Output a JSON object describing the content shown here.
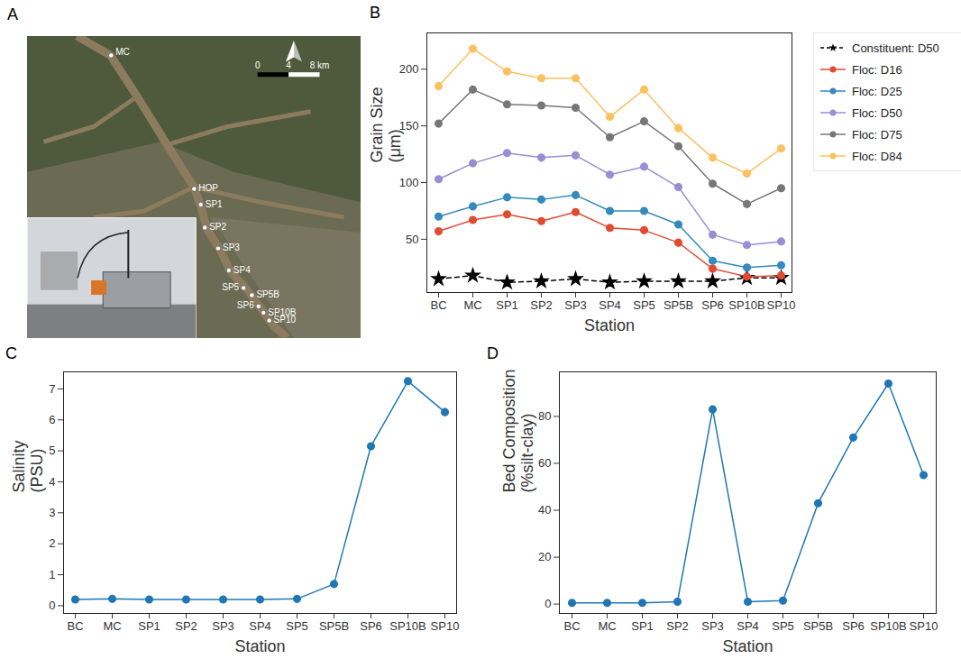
{
  "panels": [
    "A",
    "B",
    "C",
    "D"
  ],
  "map": {
    "stations": [
      "MC",
      "HOP",
      "SP1",
      "SP2",
      "SP3",
      "SP4",
      "SP5",
      "SP5B",
      "SP6",
      "SP10B",
      "SP10"
    ],
    "scale_labels": [
      "0",
      "4",
      "8 km"
    ]
  },
  "chart_data": [
    {
      "type": "line",
      "x_label": "Station",
      "y_label": "Grain Size (μm)",
      "categories": [
        "BC",
        "MC",
        "SP1",
        "SP2",
        "SP3",
        "SP4",
        "SP5",
        "SP5B",
        "SP6",
        "SP10B",
        "SP10"
      ],
      "ylim": [
        3,
        232
      ],
      "yticks": [
        50,
        100,
        150,
        200
      ],
      "legend": "right",
      "series": [
        {
          "name": "Constituent: D50",
          "color": "#000000",
          "marker": "star",
          "line_style": "dashed",
          "values": [
            15,
            18,
            12,
            13,
            15,
            12,
            13,
            13,
            13,
            16,
            16
          ]
        },
        {
          "name": "Floc: D16",
          "color": "#e24a33",
          "marker": "circle",
          "line_style": "solid",
          "values": [
            57,
            67,
            72,
            66,
            74,
            60,
            58,
            47,
            24,
            17,
            18
          ]
        },
        {
          "name": "Floc: D25",
          "color": "#348abd",
          "marker": "circle",
          "line_style": "solid",
          "values": [
            70,
            79,
            87,
            85,
            89,
            75,
            75,
            63,
            31,
            25,
            27
          ]
        },
        {
          "name": "Floc: D50",
          "color": "#988ed5",
          "marker": "circle",
          "line_style": "solid",
          "values": [
            103,
            117,
            126,
            122,
            124,
            107,
            114,
            96,
            54,
            45,
            48
          ]
        },
        {
          "name": "Floc: D75",
          "color": "#777777",
          "marker": "circle",
          "line_style": "solid",
          "values": [
            152,
            182,
            169,
            168,
            166,
            140,
            154,
            132,
            99,
            81,
            95
          ]
        },
        {
          "name": "Floc: D84",
          "color": "#fbc15e",
          "marker": "circle",
          "line_style": "solid",
          "values": [
            185,
            218,
            198,
            192,
            192,
            158,
            182,
            148,
            122,
            108,
            130
          ]
        }
      ]
    },
    {
      "type": "line",
      "x_label": "Station",
      "y_label": "Salinity (PSU)",
      "categories": [
        "BC",
        "MC",
        "SP1",
        "SP2",
        "SP3",
        "SP4",
        "SP5",
        "SP5B",
        "SP6",
        "SP10B",
        "SP10"
      ],
      "ylim": [
        -0.25,
        7.55
      ],
      "yticks": [
        0,
        1,
        2,
        3,
        4,
        5,
        6,
        7
      ],
      "color": "#1f77b4",
      "marker": "circle",
      "line_style": "solid",
      "values": [
        0.2,
        0.22,
        0.2,
        0.2,
        0.2,
        0.2,
        0.22,
        0.7,
        5.15,
        7.25,
        6.25
      ]
    },
    {
      "type": "line",
      "x_label": "Station",
      "y_label": "Bed Composition (%silt-clay)",
      "categories": [
        "BC",
        "MC",
        "SP1",
        "SP2",
        "SP3",
        "SP4",
        "SP5",
        "SP5B",
        "SP6",
        "SP10B",
        "SP10"
      ],
      "ylim": [
        -4,
        99
      ],
      "yticks": [
        0,
        20,
        40,
        60,
        80
      ],
      "color": "#1f77b4",
      "marker": "circle",
      "line_style": "solid",
      "values": [
        0.5,
        0.5,
        0.5,
        1,
        83,
        1,
        1.5,
        43,
        71,
        94,
        55
      ]
    }
  ]
}
